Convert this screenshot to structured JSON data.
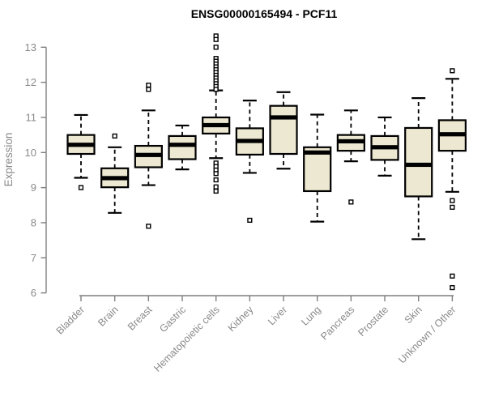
{
  "title": "ENSG00000165494 - PCF11",
  "colors": {
    "box_fill": "#EDE8D1",
    "box_border": "#000000",
    "axis": "#7f7f7f",
    "tick_label": "#8a8a8a",
    "title": "#000000"
  },
  "chart_data": {
    "type": "boxplot",
    "title": "ENSG00000165494 - PCF11",
    "xlabel": "",
    "ylabel": "Expression",
    "ylim": [
      5.9,
      13.45
    ],
    "yticks": [
      6,
      7,
      8,
      9,
      10,
      11,
      12,
      13
    ],
    "grid": false,
    "legend": "none",
    "categories": [
      "Bladder",
      "Brain",
      "Breast",
      "Gastric",
      "Hematopoietic cells",
      "Kidney",
      "Liver",
      "Lung",
      "Pancreas",
      "Prostate",
      "Skin",
      "Unknown / Other"
    ],
    "series": [
      {
        "name": "Bladder",
        "whisker_low": 9.28,
        "q1": 9.96,
        "median": 10.22,
        "q3": 10.5,
        "whisker_high": 11.07,
        "outliers": [
          9.0
        ]
      },
      {
        "name": "Brain",
        "whisker_low": 8.28,
        "q1": 9.01,
        "median": 9.27,
        "q3": 9.55,
        "whisker_high": 10.15,
        "outliers": [
          10.47
        ]
      },
      {
        "name": "Breast",
        "whisker_low": 9.07,
        "q1": 9.58,
        "median": 9.93,
        "q3": 10.19,
        "whisker_high": 11.2,
        "outliers": [
          11.92,
          11.8,
          7.9
        ]
      },
      {
        "name": "Gastric",
        "whisker_low": 9.52,
        "q1": 9.81,
        "median": 10.22,
        "q3": 10.47,
        "whisker_high": 10.77,
        "outliers": []
      },
      {
        "name": "Hematopoietic cells",
        "whisker_low": 9.84,
        "q1": 10.54,
        "median": 10.78,
        "q3": 11.0,
        "whisker_high": 11.77,
        "outliers": [
          13.32,
          13.22,
          13.0,
          12.68,
          12.6,
          12.52,
          12.44,
          12.36,
          12.28,
          12.2,
          12.12,
          12.04,
          11.96,
          11.88,
          11.8,
          9.7,
          9.6,
          9.5,
          9.4,
          9.22,
          9.02,
          8.9
        ]
      },
      {
        "name": "Kidney",
        "whisker_low": 9.42,
        "q1": 9.94,
        "median": 10.33,
        "q3": 10.69,
        "whisker_high": 11.48,
        "outliers": [
          8.07
        ]
      },
      {
        "name": "Liver",
        "whisker_low": 9.54,
        "q1": 9.96,
        "median": 11.0,
        "q3": 11.33,
        "whisker_high": 11.72,
        "outliers": []
      },
      {
        "name": "Lung",
        "whisker_low": 8.03,
        "q1": 8.9,
        "median": 10.0,
        "q3": 10.15,
        "whisker_high": 11.08,
        "outliers": []
      },
      {
        "name": "Pancreas",
        "whisker_low": 9.75,
        "q1": 10.05,
        "median": 10.32,
        "q3": 10.5,
        "whisker_high": 11.2,
        "outliers": [
          8.59
        ]
      },
      {
        "name": "Prostate",
        "whisker_low": 9.34,
        "q1": 9.79,
        "median": 10.15,
        "q3": 10.47,
        "whisker_high": 11.0,
        "outliers": []
      },
      {
        "name": "Skin",
        "whisker_low": 7.53,
        "q1": 8.75,
        "median": 9.65,
        "q3": 10.7,
        "whisker_high": 11.55,
        "outliers": []
      },
      {
        "name": "Unknown / Other",
        "whisker_low": 8.88,
        "q1": 10.05,
        "median": 10.52,
        "q3": 10.92,
        "whisker_high": 12.1,
        "outliers": [
          12.33,
          8.63,
          8.44,
          6.48,
          6.15
        ]
      }
    ]
  }
}
